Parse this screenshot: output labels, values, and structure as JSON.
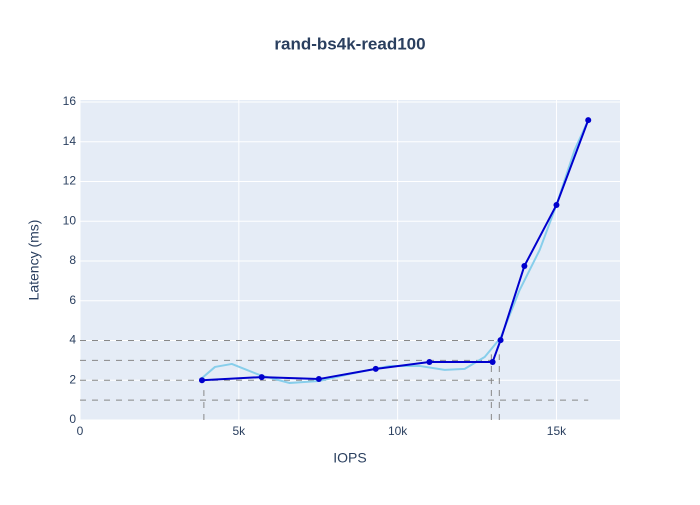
{
  "chart_data": {
    "type": "line",
    "title": "rand-bs4k-read100",
    "x_label": "IOPS",
    "y_label": "Latency (ms)",
    "xlim": [
      0,
      17000
    ],
    "ylim": [
      0,
      16.1
    ],
    "xticks": [
      0,
      {
        "value": 5000,
        "label": "5k"
      },
      {
        "value": 10000,
        "label": "10k"
      },
      {
        "value": 15000,
        "label": "15k"
      }
    ],
    "yticks": [
      0,
      2,
      4,
      6,
      8,
      10,
      12,
      14,
      16
    ],
    "grid": true,
    "series": [
      {
        "color": "#87ceeb",
        "markers": false,
        "width": 2,
        "x": [
          3770,
          4250,
          4780,
          5660,
          6600,
          7520,
          8490,
          9750,
          10690,
          11480,
          12110,
          12740,
          13240,
          13840,
          14470,
          15000,
          15570,
          16000
        ],
        "values": [
          2.01,
          2.67,
          2.82,
          2.26,
          1.86,
          1.96,
          2.31,
          2.72,
          2.72,
          2.52,
          2.57,
          3.17,
          4.13,
          6.54,
          8.55,
          10.82,
          13.58,
          15.09
        ]
      },
      {
        "color": "#0000cd",
        "markers": true,
        "width": 2,
        "x": [
          3840,
          5720,
          7520,
          9310,
          11000,
          12990,
          13240,
          13990,
          15000,
          16000
        ],
        "values": [
          2.0,
          2.16,
          2.06,
          2.57,
          2.92,
          2.92,
          4.02,
          7.75,
          10.82,
          15.09
        ]
      }
    ],
    "reference_lines": [
      {
        "x": [
          0,
          16000
        ],
        "y": [
          1,
          1
        ]
      },
      {
        "x": [
          0,
          13200
        ],
        "y": [
          2,
          2
        ]
      },
      {
        "x": [
          0,
          13200
        ],
        "y": [
          3,
          3
        ]
      },
      {
        "x": [
          0,
          13200
        ],
        "y": [
          4,
          4
        ]
      },
      {
        "x": [
          3900,
          3900
        ],
        "y": [
          0,
          1.5
        ]
      },
      {
        "x": [
          12950,
          12950
        ],
        "y": [
          0,
          3.3
        ]
      },
      {
        "x": [
          13200,
          13200
        ],
        "y": [
          0,
          3.3
        ]
      }
    ]
  }
}
